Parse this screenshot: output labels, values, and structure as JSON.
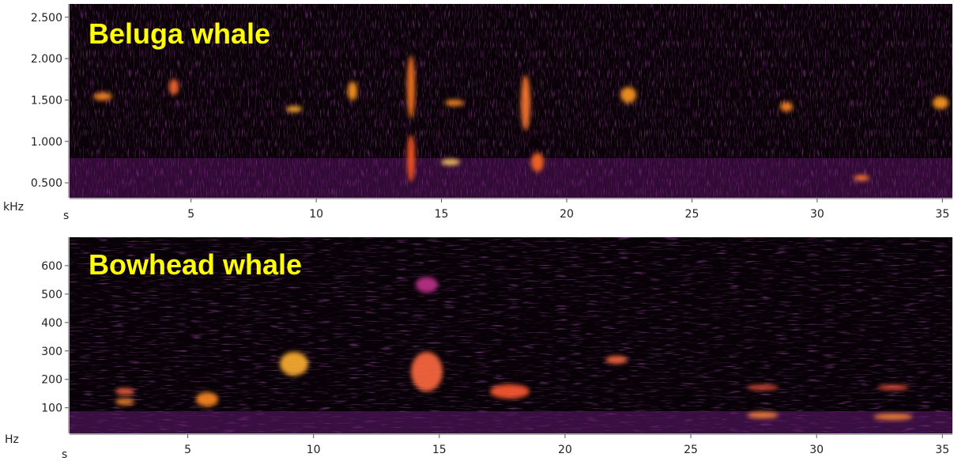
{
  "chart_data": [
    {
      "type": "spectrogram",
      "annotation": "Beluga whale",
      "x_label": "s",
      "y_label": "kHz",
      "xlim": [
        0.15,
        35.4
      ],
      "ylim": [
        0.32,
        2.66
      ],
      "xticks": [
        5,
        10,
        15,
        20,
        25,
        30,
        35
      ],
      "yticks": [
        {
          "value": 0.5,
          "label": "0.500"
        },
        {
          "value": 1,
          "label": "1.000"
        },
        {
          "value": 1.5,
          "label": "1.500"
        },
        {
          "value": 2,
          "label": "2.000"
        },
        {
          "value": 2.5,
          "label": "2.500"
        }
      ]
    },
    {
      "type": "spectrogram",
      "annotation": "Bowhead whale",
      "x_label": "s",
      "y_label": "Hz",
      "xlim": [
        0.3,
        35.4
      ],
      "ylim": [
        10,
        700
      ],
      "xticks": [
        5,
        10,
        15,
        20,
        25,
        30,
        35
      ],
      "yticks": [
        100,
        200,
        300,
        400,
        500,
        600
      ]
    }
  ]
}
